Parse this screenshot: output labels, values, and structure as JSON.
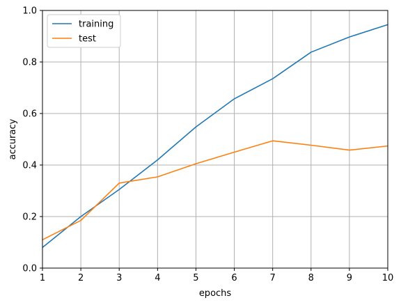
{
  "chart_data": {
    "type": "line",
    "title": "",
    "xlabel": "epochs",
    "ylabel": "accuracy",
    "xlim": [
      1,
      10
    ],
    "ylim": [
      0,
      1
    ],
    "xticks": [
      1,
      2,
      3,
      4,
      5,
      6,
      7,
      8,
      9,
      10
    ],
    "xtick_labels": [
      "1",
      "2",
      "3",
      "4",
      "5",
      "6",
      "7",
      "8",
      "9",
      "10"
    ],
    "yticks": [
      0.0,
      0.2,
      0.4,
      0.6,
      0.8,
      1.0
    ],
    "ytick_labels": [
      "0.0",
      "0.2",
      "0.4",
      "0.6",
      "0.8",
      "1.0"
    ],
    "grid": true,
    "legend_position": "upper-left",
    "x": [
      1,
      2,
      3,
      4,
      5,
      6,
      7,
      8,
      9,
      10
    ],
    "series": [
      {
        "name": "training",
        "color": "#1f77b4",
        "values": [
          0.08,
          0.2,
          0.305,
          0.42,
          0.548,
          0.657,
          0.735,
          0.838,
          0.897,
          0.945
        ]
      },
      {
        "name": "test",
        "color": "#ff7f0e",
        "values": [
          0.11,
          0.185,
          0.33,
          0.354,
          0.405,
          0.45,
          0.494,
          0.477,
          0.458,
          0.474
        ]
      }
    ]
  }
}
